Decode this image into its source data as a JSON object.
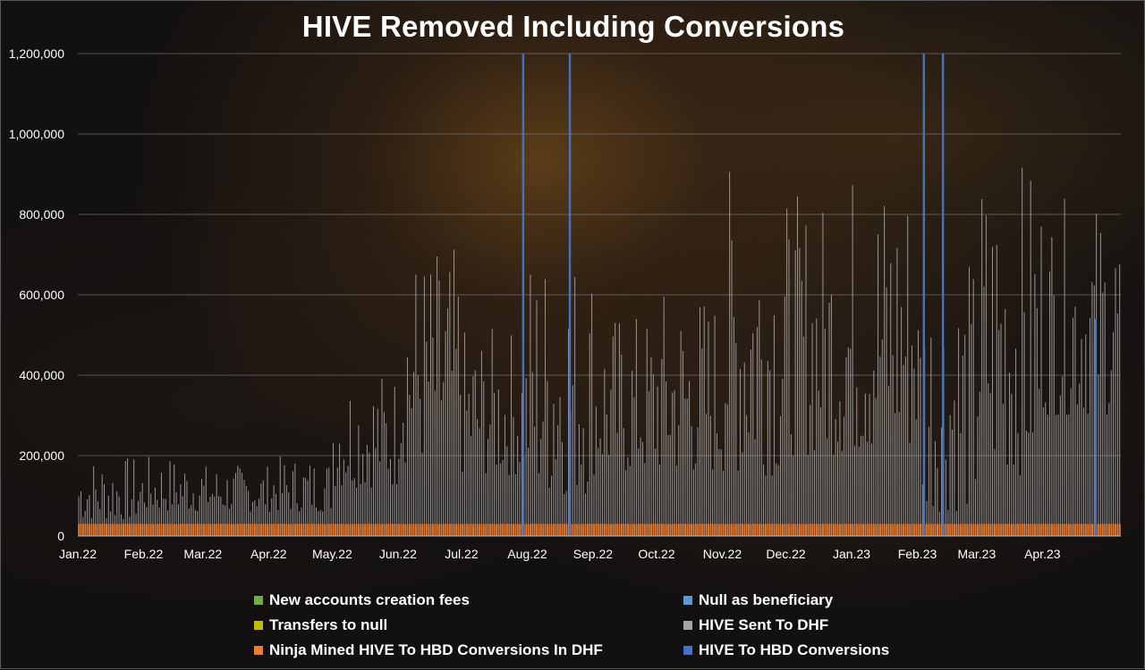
{
  "chart_data": {
    "type": "bar",
    "title": "HIVE Removed Including Conversions",
    "stacked": true,
    "x_range": [
      "2022-01-01",
      "2023-05-08"
    ],
    "categories": [
      "Jan.22",
      "Feb.22",
      "Mar.22",
      "Apr.22",
      "May.22",
      "Jun.22",
      "Jul.22",
      "Aug.22",
      "Sep.22",
      "Oct.22",
      "Nov.22",
      "Dec.22",
      "Jan.23",
      "Feb.23",
      "Mar.23",
      "Apr.23"
    ],
    "category_dates": [
      "2022-01-01",
      "2022-02-01",
      "2022-03-01",
      "2022-04-01",
      "2022-05-01",
      "2022-06-01",
      "2022-07-01",
      "2022-08-01",
      "2022-09-01",
      "2022-10-01",
      "2022-11-01",
      "2022-12-01",
      "2023-01-01",
      "2023-02-01",
      "2023-03-01",
      "2023-04-01"
    ],
    "ylim": [
      0,
      1200000
    ],
    "yticks": [
      0,
      200000,
      400000,
      600000,
      800000,
      1000000,
      1200000
    ],
    "ytick_labels": [
      "0",
      "200,000",
      "400,000",
      "600,000",
      "800,000",
      "1,000,000",
      "1,200,000"
    ],
    "grid": true,
    "legend_position": "bottom",
    "series": [
      {
        "name": "New accounts creation fees",
        "color": "#70ad47"
      },
      {
        "name": "Null as beneficiary",
        "color": "#5b9bd5"
      },
      {
        "name": "Transfers to null",
        "color": "#bfbf00"
      },
      {
        "name": "HIVE Sent To DHF",
        "color": "#a5a5a5"
      },
      {
        "name": "Ninja Mined HIVE To HBD Conversions In DHF",
        "color": "#ed7d31"
      },
      {
        "name": "HIVE To HBD Conversions",
        "color": "#4472c4"
      }
    ],
    "dhf_monthly_levels": [
      {
        "month": "2022-01",
        "min": 40000,
        "max": 200000
      },
      {
        "month": "2022-02",
        "min": 60000,
        "max": 200000
      },
      {
        "month": "2022-03",
        "min": 60000,
        "max": 180000
      },
      {
        "month": "2022-04",
        "min": 60000,
        "max": 200000
      },
      {
        "month": "2022-05",
        "min": 120000,
        "max": 420000
      },
      {
        "month": "2022-06",
        "min": 180000,
        "max": 720000
      },
      {
        "month": "2022-07",
        "min": 150000,
        "max": 520000
      },
      {
        "month": "2022-08",
        "min": 100000,
        "max": 730000
      },
      {
        "month": "2022-09",
        "min": 150000,
        "max": 560000
      },
      {
        "month": "2022-10",
        "min": 150000,
        "max": 620000
      },
      {
        "month": "2022-11",
        "min": 150000,
        "max": 930000
      },
      {
        "month": "2022-12",
        "min": 200000,
        "max": 850000
      },
      {
        "month": "2023-01",
        "min": 200000,
        "max": 930000
      },
      {
        "month": "2023-02",
        "min": 60000,
        "max": 700000
      },
      {
        "month": "2023-03",
        "min": 150000,
        "max": 940000
      },
      {
        "month": "2023-04",
        "min": 300000,
        "max": 840000
      }
    ],
    "conversion_spikes": [
      {
        "date": "2022-07-30",
        "value": 1200000
      },
      {
        "date": "2022-08-21",
        "value": 1200000
      },
      {
        "date": "2023-02-04",
        "value": 1200000
      },
      {
        "date": "2023-02-13",
        "value": 1200000
      },
      {
        "date": "2023-04-26",
        "value": 540000
      }
    ],
    "ninja_mined_daily_approx": 30000
  }
}
